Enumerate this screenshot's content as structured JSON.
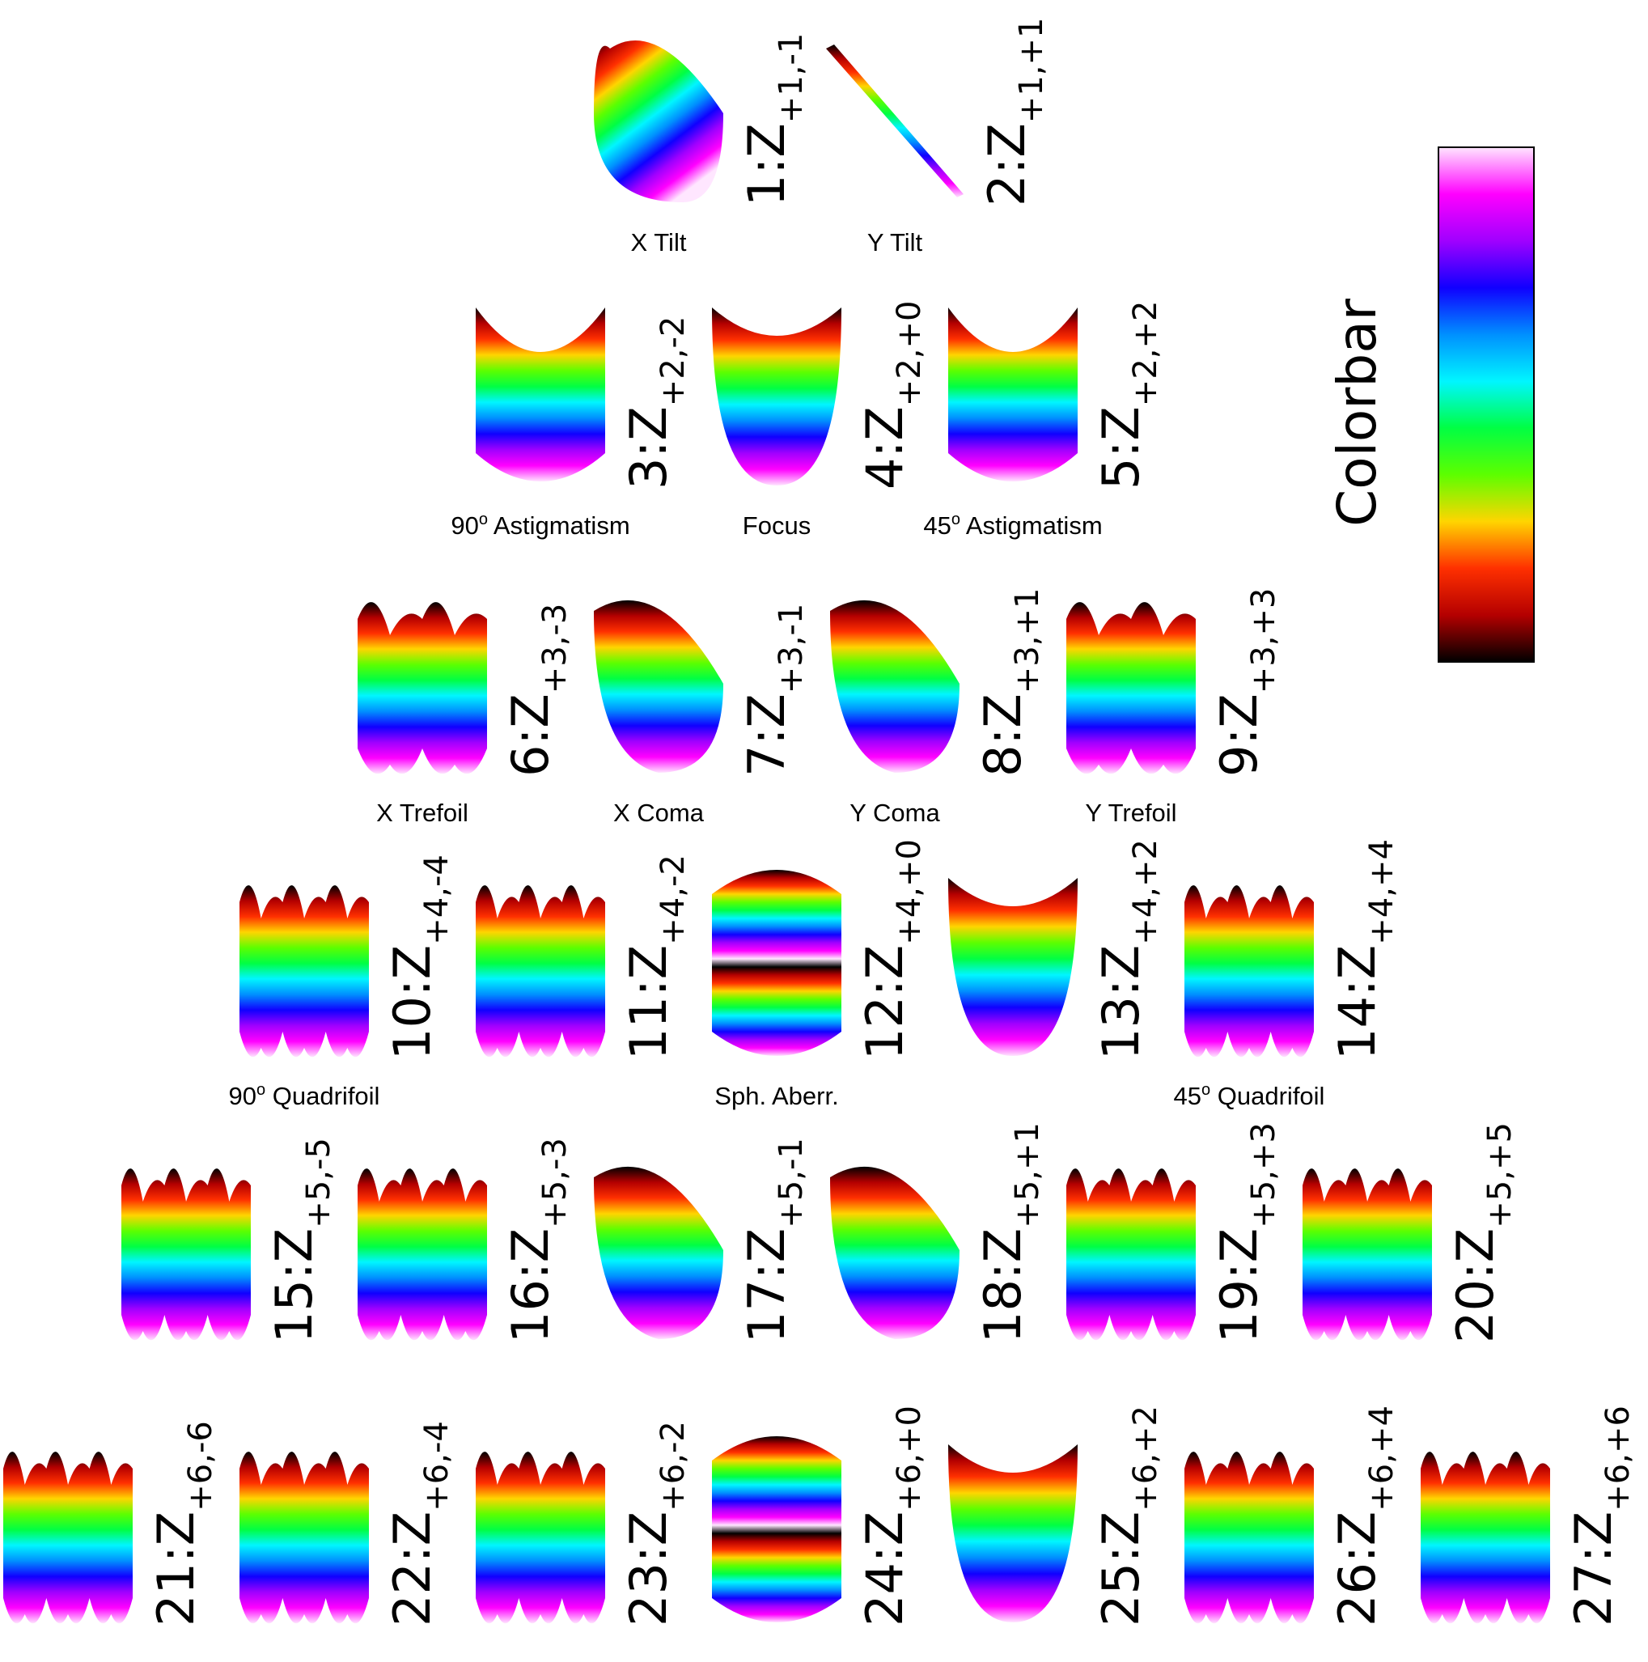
{
  "colorbar": {
    "title": "Colorbar",
    "stops": [
      "#000000",
      "#b40000",
      "#ff3000",
      "#ffd500",
      "#5cff00",
      "#00ff44",
      "#00f6ff",
      "#0090ff",
      "#1000ff",
      "#a000ff",
      "#ff00ff",
      "#ffe6ff"
    ]
  },
  "modes": [
    {
      "index": "1",
      "n": "+1",
      "m": "-1",
      "name": "X Tilt",
      "sup": "",
      "icon": "x-tilt-surface-icon"
    },
    {
      "index": "2",
      "n": "+1",
      "m": "+1",
      "name": "Y Tilt",
      "sup": "",
      "icon": "y-tilt-surface-icon"
    },
    {
      "index": "3",
      "n": "+2",
      "m": "-2",
      "name": "90",
      "sup": "o",
      "name_tail": " Astigmatism",
      "icon": "saddle-surface-icon"
    },
    {
      "index": "4",
      "n": "+2",
      "m": "+0",
      "name": "Focus",
      "sup": "",
      "icon": "bowl-surface-icon"
    },
    {
      "index": "5",
      "n": "+2",
      "m": "+2",
      "name": "45",
      "sup": "o",
      "name_tail": " Astigmatism",
      "icon": "saddle-surface-icon"
    },
    {
      "index": "6",
      "n": "+3",
      "m": "-3",
      "name": "X Trefoil",
      "sup": "",
      "icon": "trefoil-surface-icon"
    },
    {
      "index": "7",
      "n": "+3",
      "m": "-1",
      "name": "X Coma",
      "sup": "",
      "icon": "coma-surface-icon"
    },
    {
      "index": "8",
      "n": "+3",
      "m": "+1",
      "name": "Y Coma",
      "sup": "",
      "icon": "coma-surface-icon"
    },
    {
      "index": "9",
      "n": "+3",
      "m": "+3",
      "name": "Y Trefoil",
      "sup": "",
      "icon": "trefoil-surface-icon"
    },
    {
      "index": "10",
      "n": "+4",
      "m": "-4",
      "name": "90",
      "sup": "o",
      "name_tail": " Quadrifoil",
      "icon": "quadrifoil-surface-icon"
    },
    {
      "index": "11",
      "n": "+4",
      "m": "-2",
      "name": "",
      "sup": "",
      "icon": "astigmatism-surface-icon"
    },
    {
      "index": "12",
      "n": "+4",
      "m": "+0",
      "name": "Sph. Aberr.",
      "sup": "",
      "icon": "cylinder-surface-icon"
    },
    {
      "index": "13",
      "n": "+4",
      "m": "+2",
      "name": "",
      "sup": "",
      "icon": "bowl-surface-icon"
    },
    {
      "index": "14",
      "n": "+4",
      "m": "+4",
      "name": "45",
      "sup": "o",
      "name_tail": " Quadrifoil",
      "icon": "quadrifoil-surface-icon"
    },
    {
      "index": "15",
      "n": "+5",
      "m": "-5",
      "name": "",
      "sup": "",
      "icon": "wave-surface-icon"
    },
    {
      "index": "16",
      "n": "+5",
      "m": "-3",
      "name": "",
      "sup": "",
      "icon": "wave-surface-icon"
    },
    {
      "index": "17",
      "n": "+5",
      "m": "-1",
      "name": "",
      "sup": "",
      "icon": "coma-surface-icon"
    },
    {
      "index": "18",
      "n": "+5",
      "m": "+1",
      "name": "",
      "sup": "",
      "icon": "coma-surface-icon"
    },
    {
      "index": "19",
      "n": "+5",
      "m": "+3",
      "name": "",
      "sup": "",
      "icon": "wave-surface-icon"
    },
    {
      "index": "20",
      "n": "+5",
      "m": "+5",
      "name": "",
      "sup": "",
      "icon": "wave-surface-icon"
    },
    {
      "index": "21",
      "n": "+6",
      "m": "-6",
      "name": "",
      "sup": "",
      "icon": "wave-surface-icon"
    },
    {
      "index": "22",
      "n": "+6",
      "m": "-4",
      "name": "",
      "sup": "",
      "icon": "wave-surface-icon"
    },
    {
      "index": "23",
      "n": "+6",
      "m": "-2",
      "name": "",
      "sup": "",
      "icon": "wave-surface-icon"
    },
    {
      "index": "24",
      "n": "+6",
      "m": "+0",
      "name": "",
      "sup": "",
      "icon": "cylinder-surface-icon"
    },
    {
      "index": "25",
      "n": "+6",
      "m": "+2",
      "name": "",
      "sup": "",
      "icon": "bowl-surface-icon"
    },
    {
      "index": "26",
      "n": "+6",
      "m": "+4",
      "name": "",
      "sup": "",
      "icon": "wave-surface-icon"
    },
    {
      "index": "27",
      "n": "+6",
      "m": "+6",
      "name": "",
      "sup": "",
      "icon": "wave-surface-icon"
    }
  ]
}
